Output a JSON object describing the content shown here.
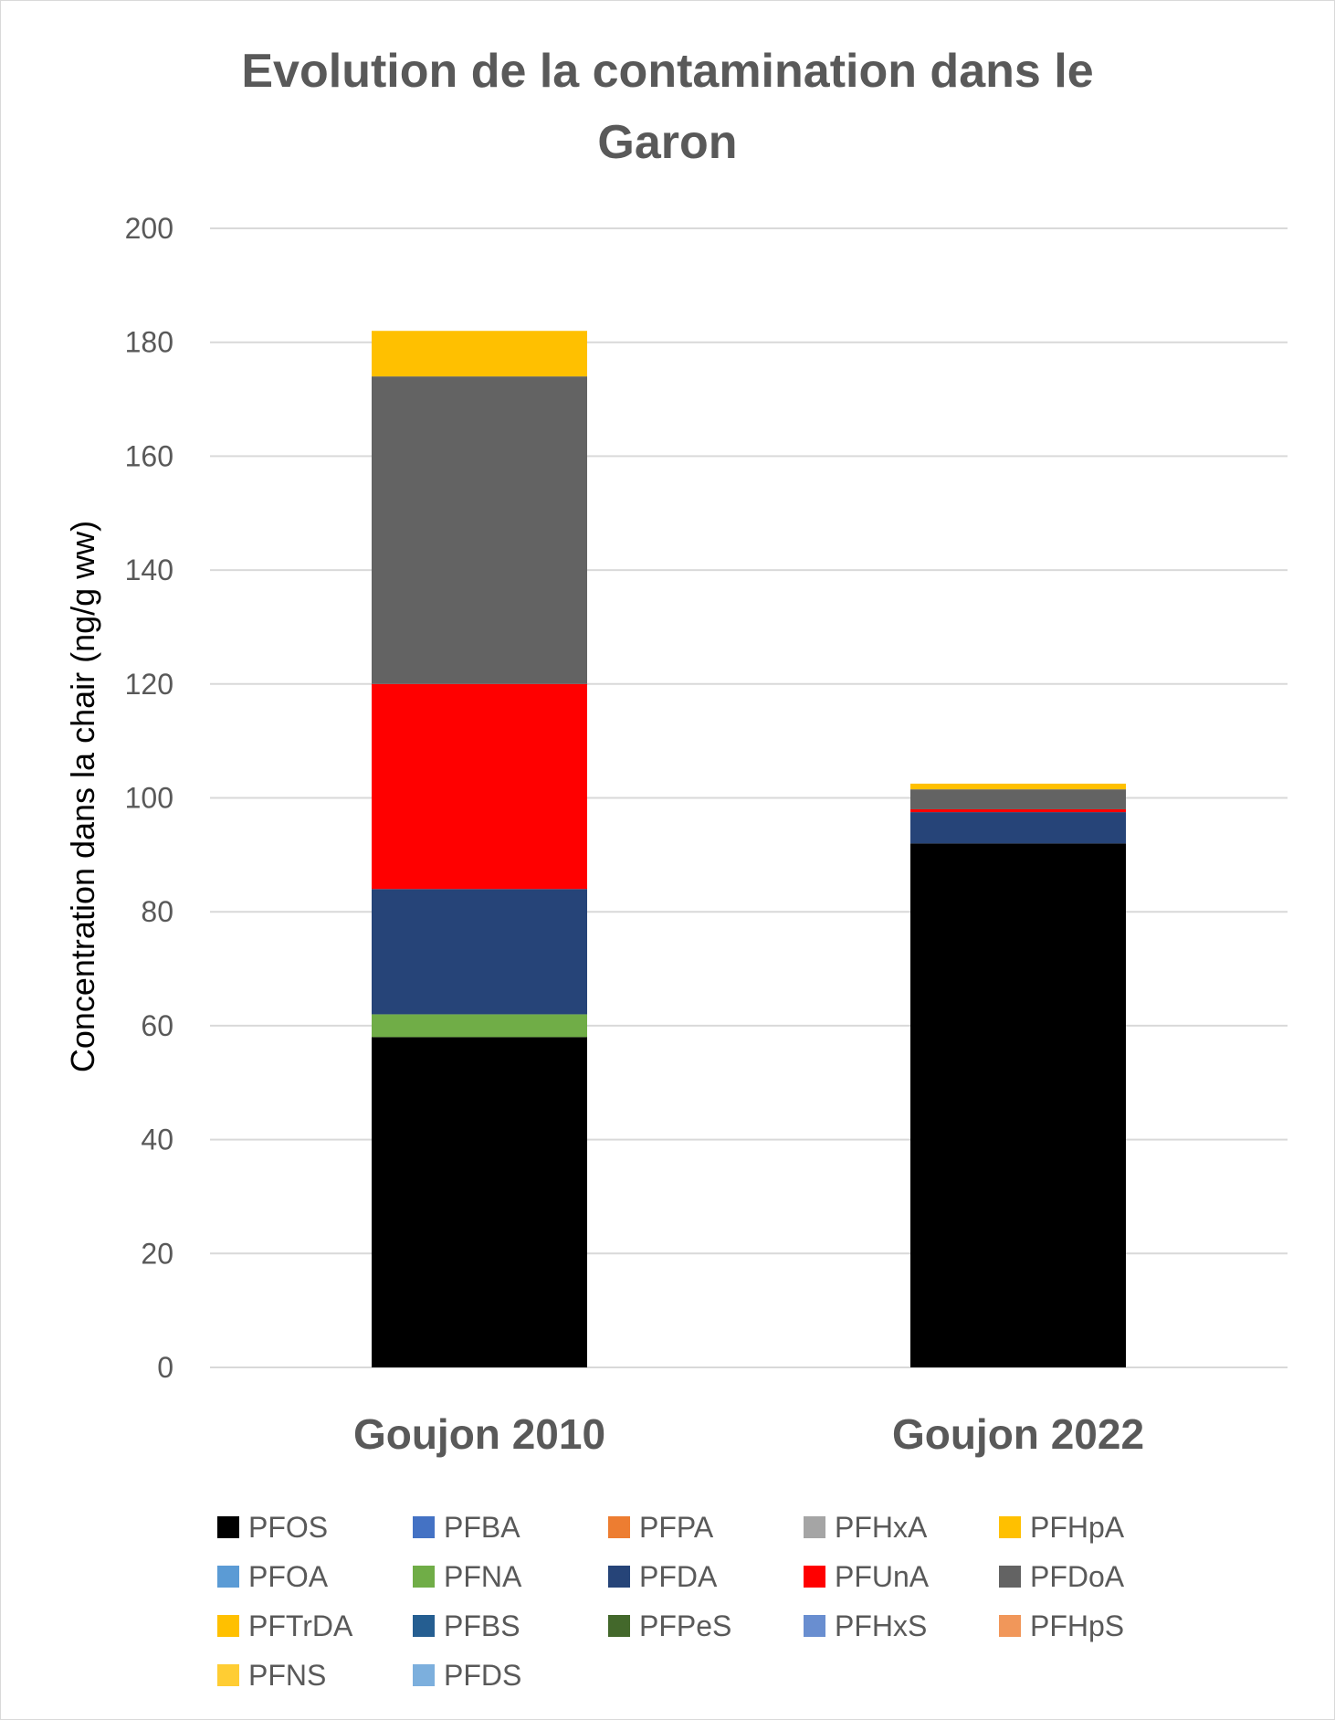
{
  "chart_data": {
    "type": "bar",
    "stacked": true,
    "title_lines": [
      "Evolution de la contamination dans le",
      "Garon"
    ],
    "xlabel": "",
    "ylabel": "Concentration dans la chair (ng/g ww)",
    "ylim": [
      0,
      200
    ],
    "yticks": [
      0,
      20,
      40,
      60,
      80,
      100,
      120,
      140,
      160,
      180,
      200
    ],
    "grid": true,
    "legend_position": "bottom",
    "categories": [
      "Goujon 2010",
      "Goujon 2022"
    ],
    "series": [
      {
        "name": "PFOS",
        "color": "#000000",
        "values": [
          58,
          92
        ]
      },
      {
        "name": "PFBA",
        "color": "#4472C4",
        "values": [
          0,
          0
        ]
      },
      {
        "name": "PFPA",
        "color": "#ED7D31",
        "values": [
          0,
          0
        ]
      },
      {
        "name": "PFHxA",
        "color": "#A5A5A5",
        "values": [
          0,
          0
        ]
      },
      {
        "name": "PFHpA",
        "color": "#FFC000",
        "values": [
          0,
          0
        ]
      },
      {
        "name": "PFOA",
        "color": "#5B9BD5",
        "values": [
          0,
          0
        ]
      },
      {
        "name": "PFNA",
        "color": "#70AD47",
        "values": [
          4,
          0
        ]
      },
      {
        "name": "PFDA",
        "color": "#264478",
        "values": [
          22,
          5.5
        ]
      },
      {
        "name": "PFUnA",
        "color": "#FF0000",
        "values": [
          36,
          0.5
        ]
      },
      {
        "name": "PFDoA",
        "color": "#636363",
        "values": [
          54,
          3.5
        ]
      },
      {
        "name": "PFTrDA",
        "color": "#FFC000",
        "values": [
          8,
          1
        ]
      },
      {
        "name": "PFBS",
        "color": "#255E91",
        "values": [
          0,
          0
        ]
      },
      {
        "name": "PFPeS",
        "color": "#43682B",
        "values": [
          0,
          0
        ]
      },
      {
        "name": "PFHxS",
        "color": "#698ED0",
        "values": [
          0,
          0
        ]
      },
      {
        "name": "PFHpS",
        "color": "#F1975A",
        "values": [
          0,
          0
        ]
      },
      {
        "name": "PFNS",
        "color": "#FFCD33",
        "values": [
          0,
          0
        ]
      },
      {
        "name": "PFDS",
        "color": "#7CAFDD",
        "values": [
          0,
          0
        ]
      }
    ]
  }
}
